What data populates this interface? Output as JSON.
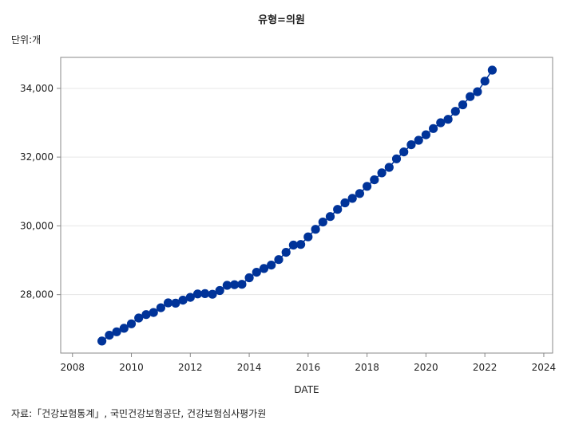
{
  "header": {
    "title": "유형=의원"
  },
  "unit_label": "단위:개",
  "source_note": "자료:「건강보험통계」, 국민건강보험공단, 건강보험심사평가원",
  "colors": {
    "marker": "#003399",
    "line": "#003399",
    "grid": "#e6e6e6",
    "frame": "#888888"
  },
  "chart_data": {
    "type": "line",
    "title": "유형=의원",
    "xlabel": "DATE",
    "ylabel": "",
    "xlim": [
      2007.6,
      2024.3
    ],
    "ylim": [
      26300,
      34900
    ],
    "x_ticks": [
      2008,
      2010,
      2012,
      2014,
      2016,
      2018,
      2020,
      2022,
      2024
    ],
    "x_tick_labels": [
      "2008",
      "2010",
      "2012",
      "2014",
      "2016",
      "2018",
      "2020",
      "2022",
      "2024"
    ],
    "y_ticks": [
      28000,
      30000,
      32000,
      34000
    ],
    "y_tick_labels": [
      "28,000",
      "30,000",
      "32,000",
      "34,000"
    ],
    "grid": true,
    "series": [
      {
        "x": [
          2009.0,
          2009.25,
          2009.5,
          2009.75,
          2010.0,
          2010.25,
          2010.5,
          2010.75,
          2011.0,
          2011.25,
          2011.5,
          2011.75,
          2012.0,
          2012.25,
          2012.5,
          2012.75,
          2013.0,
          2013.25,
          2013.5,
          2013.75,
          2014.0,
          2014.25,
          2014.5,
          2014.75,
          2015.0,
          2015.25,
          2015.5,
          2015.75,
          2016.0,
          2016.25,
          2016.5,
          2016.75,
          2017.0,
          2017.25,
          2017.5,
          2017.75,
          2018.0,
          2018.25,
          2018.5,
          2018.75,
          2019.0,
          2019.25,
          2019.5,
          2019.75,
          2020.0,
          2020.25,
          2020.5,
          2020.75,
          2021.0,
          2021.25,
          2021.5,
          2021.75,
          2022.0,
          2022.25
        ],
        "values": [
          26650,
          26820,
          26920,
          27020,
          27150,
          27320,
          27420,
          27480,
          27620,
          27760,
          27750,
          27840,
          27920,
          28020,
          28030,
          28010,
          28120,
          28270,
          28290,
          28300,
          28490,
          28650,
          28760,
          28860,
          29020,
          29230,
          29440,
          29460,
          29680,
          29900,
          30110,
          30270,
          30480,
          30670,
          30800,
          30940,
          31150,
          31340,
          31540,
          31700,
          31950,
          32150,
          32360,
          32490,
          32650,
          32830,
          33000,
          33100,
          33330,
          33520,
          33760,
          33900,
          34210,
          34530
        ]
      }
    ]
  }
}
